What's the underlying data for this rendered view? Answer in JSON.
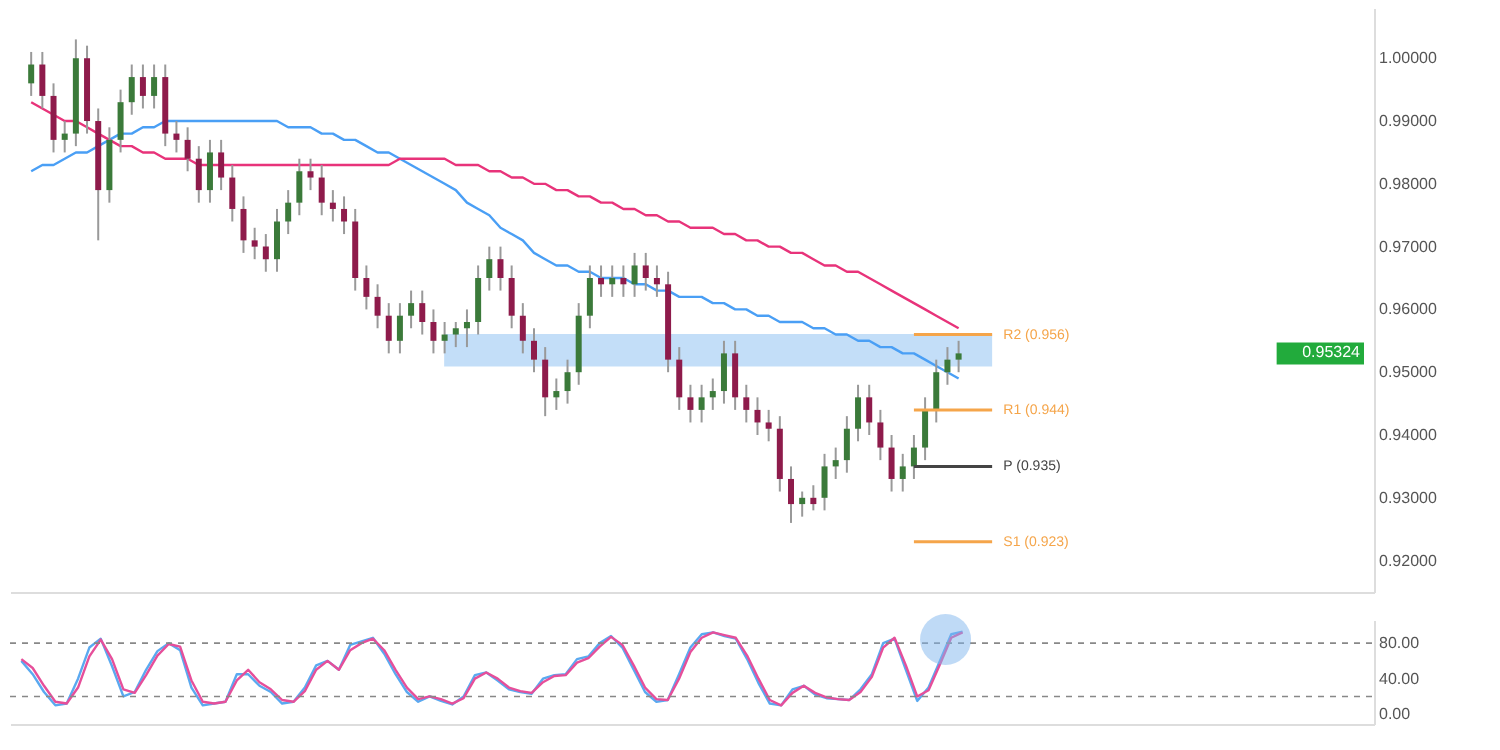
{
  "chart_data": [
    {
      "type": "candlestick",
      "categories": [
        null,
        null,
        null,
        null,
        null,
        null,
        null,
        null,
        null,
        null,
        null,
        null,
        null,
        null,
        null,
        null,
        null,
        null,
        null,
        null,
        null,
        null,
        null,
        null,
        null,
        null,
        null,
        null,
        null,
        null,
        null,
        null,
        null,
        null,
        null,
        null,
        null,
        null,
        null,
        null,
        null,
        null,
        null,
        null,
        null,
        null,
        null,
        null,
        null,
        null,
        null,
        null,
        null,
        null,
        null,
        null,
        null,
        null,
        null,
        null,
        null,
        null,
        null,
        null,
        null,
        null,
        null,
        null,
        null,
        null,
        null,
        null,
        null,
        null,
        null,
        null,
        null,
        null,
        null,
        null,
        null,
        null,
        null,
        null
      ],
      "ohlc": [
        [
          0.996,
          1.001,
          0.994,
          0.999
        ],
        [
          0.999,
          1.001,
          0.992,
          0.994
        ],
        [
          0.994,
          0.996,
          0.985,
          0.987
        ],
        [
          0.987,
          0.99,
          0.985,
          0.988
        ],
        [
          0.988,
          1.003,
          0.986,
          1.0
        ],
        [
          1.0,
          1.002,
          0.988,
          0.99
        ],
        [
          0.99,
          0.992,
          0.971,
          0.979
        ],
        [
          0.979,
          0.989,
          0.977,
          0.987
        ],
        [
          0.987,
          0.995,
          0.985,
          0.993
        ],
        [
          0.993,
          0.999,
          0.991,
          0.997
        ],
        [
          0.997,
          0.999,
          0.992,
          0.994
        ],
        [
          0.994,
          0.999,
          0.992,
          0.997
        ],
        [
          0.997,
          0.999,
          0.986,
          0.988
        ],
        [
          0.988,
          0.99,
          0.985,
          0.987
        ],
        [
          0.987,
          0.989,
          0.982,
          0.984
        ],
        [
          0.984,
          0.986,
          0.977,
          0.979
        ],
        [
          0.979,
          0.987,
          0.977,
          0.985
        ],
        [
          0.985,
          0.987,
          0.979,
          0.981
        ],
        [
          0.981,
          0.983,
          0.974,
          0.976
        ],
        [
          0.976,
          0.978,
          0.969,
          0.971
        ],
        [
          0.971,
          0.973,
          0.968,
          0.97
        ],
        [
          0.97,
          0.972,
          0.966,
          0.968
        ],
        [
          0.968,
          0.976,
          0.966,
          0.974
        ],
        [
          0.974,
          0.979,
          0.972,
          0.977
        ],
        [
          0.977,
          0.984,
          0.975,
          0.982
        ],
        [
          0.982,
          0.984,
          0.979,
          0.981
        ],
        [
          0.981,
          0.983,
          0.975,
          0.977
        ],
        [
          0.977,
          0.979,
          0.974,
          0.976
        ],
        [
          0.976,
          0.978,
          0.972,
          0.974
        ],
        [
          0.974,
          0.976,
          0.963,
          0.965
        ],
        [
          0.965,
          0.967,
          0.96,
          0.962
        ],
        [
          0.962,
          0.964,
          0.957,
          0.959
        ],
        [
          0.959,
          0.961,
          0.953,
          0.955
        ],
        [
          0.955,
          0.961,
          0.953,
          0.959
        ],
        [
          0.959,
          0.963,
          0.957,
          0.961
        ],
        [
          0.961,
          0.963,
          0.956,
          0.958
        ],
        [
          0.958,
          0.96,
          0.953,
          0.955
        ],
        [
          0.955,
          0.958,
          0.953,
          0.956
        ],
        [
          0.956,
          0.958,
          0.954,
          0.957
        ],
        [
          0.957,
          0.96,
          0.954,
          0.958
        ],
        [
          0.958,
          0.967,
          0.956,
          0.965
        ],
        [
          0.965,
          0.97,
          0.963,
          0.968
        ],
        [
          0.968,
          0.97,
          0.963,
          0.965
        ],
        [
          0.965,
          0.967,
          0.957,
          0.959
        ],
        [
          0.959,
          0.961,
          0.953,
          0.955
        ],
        [
          0.955,
          0.957,
          0.95,
          0.952
        ],
        [
          0.952,
          0.954,
          0.943,
          0.946
        ],
        [
          0.946,
          0.949,
          0.944,
          0.947
        ],
        [
          0.947,
          0.952,
          0.945,
          0.95
        ],
        [
          0.95,
          0.961,
          0.948,
          0.959
        ],
        [
          0.959,
          0.967,
          0.957,
          0.965
        ],
        [
          0.965,
          0.967,
          0.962,
          0.964
        ],
        [
          0.964,
          0.967,
          0.962,
          0.965
        ],
        [
          0.965,
          0.967,
          0.962,
          0.964
        ],
        [
          0.964,
          0.969,
          0.962,
          0.967
        ],
        [
          0.967,
          0.969,
          0.963,
          0.965
        ],
        [
          0.965,
          0.967,
          0.962,
          0.964
        ],
        [
          0.964,
          0.966,
          0.95,
          0.952
        ],
        [
          0.952,
          0.954,
          0.944,
          0.946
        ],
        [
          0.946,
          0.948,
          0.942,
          0.944
        ],
        [
          0.944,
          0.948,
          0.942,
          0.946
        ],
        [
          0.946,
          0.949,
          0.944,
          0.947
        ],
        [
          0.947,
          0.955,
          0.945,
          0.953
        ],
        [
          0.953,
          0.955,
          0.944,
          0.946
        ],
        [
          0.946,
          0.948,
          0.942,
          0.944
        ],
        [
          0.944,
          0.946,
          0.94,
          0.942
        ],
        [
          0.942,
          0.944,
          0.939,
          0.941
        ],
        [
          0.941,
          0.943,
          0.931,
          0.933
        ],
        [
          0.933,
          0.935,
          0.926,
          0.929
        ],
        [
          0.929,
          0.931,
          0.927,
          0.93
        ],
        [
          0.93,
          0.932,
          0.928,
          0.929
        ],
        [
          0.93,
          0.937,
          0.928,
          0.935
        ],
        [
          0.935,
          0.938,
          0.933,
          0.936
        ],
        [
          0.936,
          0.943,
          0.934,
          0.941
        ],
        [
          0.941,
          0.948,
          0.939,
          0.946
        ],
        [
          0.946,
          0.948,
          0.94,
          0.942
        ],
        [
          0.942,
          0.944,
          0.936,
          0.938
        ],
        [
          0.938,
          0.94,
          0.931,
          0.933
        ],
        [
          0.933,
          0.937,
          0.931,
          0.935
        ],
        [
          0.935,
          0.94,
          0.933,
          0.938
        ],
        [
          0.938,
          0.946,
          0.936,
          0.944
        ],
        [
          0.944,
          0.952,
          0.942,
          0.95
        ],
        [
          0.95,
          0.954,
          0.948,
          0.952
        ],
        [
          0.952,
          0.955,
          0.95,
          0.953
        ]
      ],
      "series": [
        {
          "type": "line",
          "color": "#4a9ff5",
          "values": [
            0.982,
            0.983,
            0.983,
            0.984,
            0.985,
            0.985,
            0.986,
            0.987,
            0.988,
            0.988,
            0.989,
            0.989,
            0.99,
            0.99,
            0.99,
            0.99,
            0.99,
            0.99,
            0.99,
            0.99,
            0.99,
            0.99,
            0.99,
            0.989,
            0.989,
            0.989,
            0.988,
            0.988,
            0.987,
            0.987,
            0.986,
            0.985,
            0.985,
            0.984,
            0.983,
            0.982,
            0.981,
            0.98,
            0.979,
            0.977,
            0.976,
            0.975,
            0.973,
            0.972,
            0.971,
            0.969,
            0.968,
            0.967,
            0.967,
            0.966,
            0.966,
            0.965,
            0.965,
            0.965,
            0.964,
            0.964,
            0.963,
            0.963,
            0.962,
            0.962,
            0.962,
            0.961,
            0.961,
            0.96,
            0.96,
            0.959,
            0.959,
            0.958,
            0.958,
            0.958,
            0.957,
            0.957,
            0.956,
            0.956,
            0.955,
            0.955,
            0.954,
            0.954,
            0.953,
            0.953,
            0.952,
            0.951,
            0.95,
            0.949
          ]
        },
        {
          "type": "line",
          "color": "#e8337a",
          "values": [
            0.993,
            0.992,
            0.991,
            0.99,
            0.99,
            0.989,
            0.988,
            0.987,
            0.986,
            0.986,
            0.985,
            0.985,
            0.984,
            0.984,
            0.984,
            0.983,
            0.983,
            0.983,
            0.983,
            0.983,
            0.983,
            0.983,
            0.983,
            0.983,
            0.983,
            0.983,
            0.983,
            0.983,
            0.983,
            0.983,
            0.983,
            0.983,
            0.983,
            0.984,
            0.984,
            0.984,
            0.984,
            0.984,
            0.983,
            0.983,
            0.983,
            0.982,
            0.982,
            0.981,
            0.981,
            0.98,
            0.98,
            0.979,
            0.979,
            0.978,
            0.978,
            0.977,
            0.977,
            0.976,
            0.976,
            0.975,
            0.975,
            0.974,
            0.974,
            0.973,
            0.973,
            0.973,
            0.972,
            0.972,
            0.971,
            0.971,
            0.97,
            0.97,
            0.969,
            0.969,
            0.968,
            0.967,
            0.967,
            0.966,
            0.966,
            0.965,
            0.964,
            0.963,
            0.962,
            0.961,
            0.96,
            0.959,
            0.958,
            0.957
          ]
        }
      ],
      "ylim": [
        0.915,
        1.008
      ],
      "yticks": [
        {
          "value": 0.92,
          "label": "0.92000"
        },
        {
          "value": 0.93,
          "label": "0.93000"
        },
        {
          "value": 0.94,
          "label": "0.94000"
        },
        {
          "value": 0.95,
          "label": "0.95000"
        },
        {
          "value": 0.96,
          "label": "0.96000"
        },
        {
          "value": 0.97,
          "label": "0.97000"
        },
        {
          "value": 0.98,
          "label": "0.98000"
        },
        {
          "value": 0.99,
          "label": "0.99000"
        },
        {
          "value": 1,
          "label": "1.00000"
        }
      ],
      "tick_labels": "y",
      "ref_lines": [
        {
          "axis": "y",
          "value": 0.956,
          "label": "R2 (0.956)",
          "color": "#f5a54a"
        },
        {
          "axis": "y",
          "value": 0.944,
          "label": "R1 (0.944)",
          "color": "#f5a54a"
        },
        {
          "axis": "y",
          "value": 0.935,
          "label": "P (0.935)",
          "color": "#444444"
        },
        {
          "axis": "y",
          "value": 0.923,
          "label": "S1 (0.923)",
          "color": "#f5a54a"
        }
      ],
      "bands": [
        {
          "axis": "y",
          "from": 0.9509,
          "to": 0.9561,
          "color": "#bcdaf7"
        }
      ],
      "annotations": [
        "0.95324"
      ]
    },
    {
      "type": "line",
      "categories": [
        null,
        null,
        null,
        null,
        null,
        null,
        null,
        null,
        null,
        null,
        null,
        null,
        null,
        null,
        null,
        null,
        null,
        null,
        null,
        null,
        null,
        null,
        null,
        null,
        null,
        null,
        null,
        null,
        null,
        null,
        null,
        null,
        null,
        null,
        null,
        null,
        null,
        null,
        null,
        null,
        null,
        null,
        null,
        null,
        null,
        null,
        null,
        null,
        null,
        null,
        null,
        null,
        null,
        null,
        null,
        null,
        null,
        null,
        null,
        null,
        null,
        null,
        null,
        null,
        null,
        null,
        null,
        null,
        null,
        null,
        null,
        null,
        null,
        null,
        null,
        null,
        null,
        null,
        null,
        null,
        null,
        null,
        null,
        null
      ],
      "series": [
        {
          "color": "#5aa9f0",
          "values": [
            60,
            45,
            25,
            10,
            12,
            40,
            75,
            85,
            54,
            20,
            25,
            50,
            71,
            80,
            72,
            30,
            10,
            12,
            14,
            45,
            45,
            32,
            25,
            12,
            14,
            30,
            55,
            60,
            50,
            78,
            82,
            86,
            68,
            45,
            25,
            14,
            20,
            15,
            11,
            20,
            44,
            47,
            38,
            28,
            25,
            23,
            40,
            44,
            45,
            62,
            65,
            80,
            88,
            75,
            50,
            25,
            14,
            16,
            45,
            75,
            90,
            92,
            88,
            85,
            62,
            35,
            12,
            10,
            28,
            32,
            22,
            18,
            17,
            16,
            28,
            45,
            80,
            85,
            50,
            15,
            30,
            60,
            90,
            93
          ]
        },
        {
          "color": "#e64f9a",
          "values": [
            62,
            52,
            32,
            14,
            12,
            30,
            65,
            84,
            62,
            28,
            24,
            44,
            66,
            79,
            76,
            38,
            14,
            12,
            14,
            38,
            50,
            36,
            28,
            16,
            14,
            26,
            50,
            60,
            50,
            72,
            80,
            85,
            72,
            50,
            30,
            17,
            20,
            17,
            12,
            18,
            40,
            47,
            40,
            30,
            26,
            24,
            36,
            43,
            44,
            58,
            63,
            76,
            87,
            78,
            55,
            30,
            17,
            16,
            40,
            70,
            86,
            92,
            89,
            86,
            66,
            40,
            16,
            10,
            24,
            32,
            24,
            19,
            17,
            16,
            25,
            42,
            75,
            86,
            55,
            20,
            27,
            56,
            86,
            92
          ]
        }
      ],
      "ylim": [
        -11,
        106
      ],
      "yticks": [
        {
          "value": 0,
          "label": "0.00"
        },
        {
          "value": 40,
          "label": "40.00"
        },
        {
          "value": 80,
          "label": "80.00"
        }
      ],
      "tick_labels": "y",
      "ref_lines": [
        {
          "axis": "y",
          "value": 80,
          "color": "#888888",
          "line_style": "dashed"
        },
        {
          "axis": "y",
          "value": 20,
          "color": "#888888",
          "line_style": "dashed"
        }
      ]
    }
  ]
}
